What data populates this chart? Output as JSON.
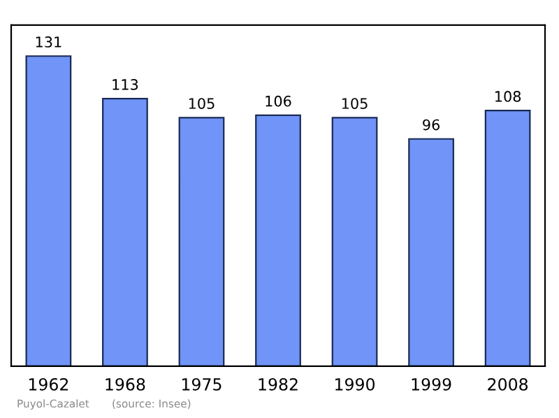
{
  "chart_data": {
    "type": "bar",
    "categories": [
      "1962",
      "1968",
      "1975",
      "1982",
      "1990",
      "1999",
      "2008"
    ],
    "values": [
      131,
      113,
      105,
      106,
      105,
      96,
      108
    ],
    "color": "#7094f7",
    "data_labels": true,
    "tick_labels": "x",
    "annotations": [
      "Puyol-Cazalet",
      "(source: Insee)"
    ]
  }
}
